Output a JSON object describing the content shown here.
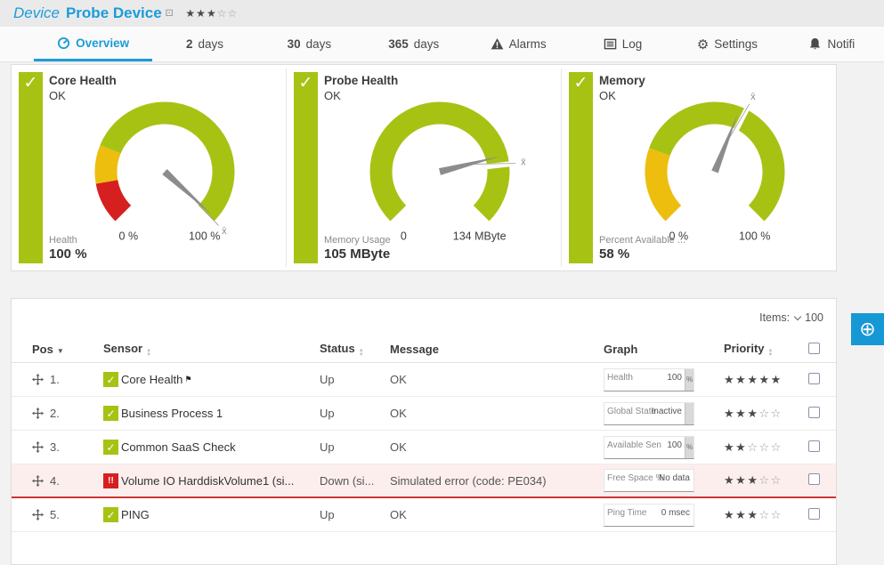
{
  "header": {
    "kind": "Device",
    "title": "Probe Device",
    "rating": 3,
    "rating_max": 5
  },
  "tabs": [
    {
      "label": "Overview",
      "active": true
    },
    {
      "num": "2",
      "label": "days"
    },
    {
      "num": "30",
      "label": "days"
    },
    {
      "num": "365",
      "label": "days"
    },
    {
      "label": "Alarms"
    },
    {
      "label": "Log"
    },
    {
      "label": "Settings"
    },
    {
      "label": "Notifi"
    }
  ],
  "gauges": [
    {
      "title": "Core Health",
      "status": "OK",
      "channel_label": "Health",
      "channel_value": "100 %",
      "min": "0 %",
      "max": "100 %",
      "needle": 0.99,
      "avg": 1.0,
      "segments": [
        {
          "from": 0,
          "to": 0.13,
          "color": "#d62020"
        },
        {
          "from": 0.13,
          "to": 0.25,
          "color": "#edbe0e"
        },
        {
          "from": 0.25,
          "to": 1,
          "color": "#a8c214"
        }
      ]
    },
    {
      "title": "Probe Health",
      "status": "OK",
      "channel_label": "Memory Usage",
      "channel_value": "105 MByte",
      "min": "0",
      "max": "134 MByte",
      "needle": 0.78,
      "avg": 0.81,
      "segments": [
        {
          "from": 0,
          "to": 1,
          "color": "#a8c214"
        }
      ]
    },
    {
      "title": "Memory",
      "status": "OK",
      "channel_label": "Percent Available ...",
      "channel_value": "58 %",
      "min": "0 %",
      "max": "100 %",
      "needle": 0.58,
      "avg": 0.6,
      "segments": [
        {
          "from": 0,
          "to": 0.24,
          "color": "#edbe0e"
        },
        {
          "from": 0.24,
          "to": 1,
          "color": "#a8c214"
        }
      ]
    }
  ],
  "table": {
    "items_label": "Items:",
    "items_count": "100",
    "columns": {
      "pos": "Pos",
      "sensor": "Sensor",
      "status": "Status",
      "message": "Message",
      "graph": "Graph",
      "priority": "Priority"
    },
    "rows": [
      {
        "pos": "1.",
        "name": "Core Health",
        "flag": true,
        "state": "ok",
        "status": "Up",
        "message": "OK",
        "graph_label": "Health",
        "graph_value": "100",
        "graph_unit": "%",
        "graph_strip": true,
        "priority": 5,
        "alert": false
      },
      {
        "pos": "2.",
        "name": "Business Process 1",
        "flag": false,
        "state": "ok",
        "status": "Up",
        "message": "OK",
        "graph_label": "Global State",
        "graph_value": "Inactive",
        "graph_unit": "",
        "graph_strip": true,
        "priority": 3,
        "alert": false
      },
      {
        "pos": "3.",
        "name": "Common SaaS Check",
        "flag": false,
        "state": "ok",
        "status": "Up",
        "message": "OK",
        "graph_label": "Available Sen",
        "graph_value": "100",
        "graph_unit": "%",
        "graph_strip": true,
        "priority": 2,
        "alert": false
      },
      {
        "pos": "4.",
        "name": "Volume IO HarddiskVolume1 (si...",
        "flag": false,
        "state": "error",
        "status": "Down (si...",
        "message": "Simulated error (code: PE034)",
        "graph_label": "Free Space %",
        "graph_value": "No data",
        "graph_unit": "",
        "graph_strip": false,
        "priority": 3,
        "alert": true
      },
      {
        "pos": "5.",
        "name": "PING",
        "flag": false,
        "state": "ok",
        "status": "Up",
        "message": "OK",
        "graph_label": "Ping Time",
        "graph_value": "0 msec",
        "graph_unit": "",
        "graph_strip": false,
        "priority": 3,
        "alert": false
      }
    ]
  },
  "colors": {
    "accent_blue": "#1b9cd9",
    "ok_green": "#a8c214",
    "warn_yellow": "#edbe0e",
    "error_red": "#d62020"
  }
}
